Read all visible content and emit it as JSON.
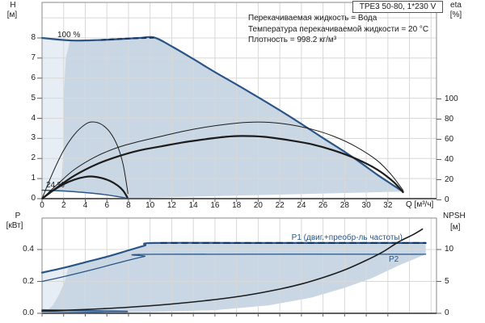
{
  "header": {
    "pump_model": "TPE3 50-80, 1*230 V"
  },
  "conditions": [
    "Перекачиваемая жидкость = Вода",
    "Температура перекачиваемой жидкости = 20 °C",
    "Плотность = 998.2 кг/м³"
  ],
  "axes": {
    "h": "H",
    "h_unit": "[м]",
    "eta": "eta",
    "eta_unit": "[%]",
    "q": "Q [м³/ч]",
    "p": "P",
    "p_unit": "[кВт]",
    "npsh": "NPSH",
    "npsh_unit": "[м]"
  },
  "labels": {
    "speed_100": "100 %",
    "speed_24": "24 %",
    "p1": "P1 (двиг.+преобр-ль частоты)",
    "p2": "P2"
  },
  "colors": {
    "curve_blue": "#2a5586",
    "dash_navy": "#16355c",
    "black": "#1c1c1c",
    "fill_main": "#c9d6e4",
    "fill_light": "#e6edf5",
    "grid": "#d8d8d8",
    "frame": "#8a8a8a",
    "axis": "#606060"
  },
  "chart_data": [
    {
      "type": "line",
      "title": "Pump head and efficiency vs flow",
      "xlabel": "Q [м³/ч]",
      "ylabel_left": "H [м]",
      "ylabel_right": "eta [%]",
      "x_range": [
        0,
        36.5
      ],
      "y_left_range": [
        0,
        9.8
      ],
      "y_right_range": [
        0,
        100
      ],
      "grid": true,
      "x_ticks": [
        "0",
        "2",
        "4",
        "6",
        "8",
        "10",
        "12",
        "14",
        "16",
        "18",
        "20",
        "22",
        "24",
        "26",
        "28",
        "30",
        "32"
      ],
      "h_ticks": [
        "0",
        "1",
        "2",
        "3",
        "4",
        "5",
        "6",
        "7",
        "8"
      ],
      "eta_ticks": [
        "0",
        "20",
        "40",
        "60",
        "80",
        "100"
      ],
      "series": [
        {
          "name": "head-curve-100pct",
          "axis": "H",
          "color": "blue",
          "width": 2.2,
          "dash": null,
          "points": [
            [
              0,
              8.0
            ],
            [
              1.5,
              7.92
            ],
            [
              3,
              7.87
            ],
            [
              5,
              7.89
            ],
            [
              7,
              7.94
            ],
            [
              9,
              8.0
            ],
            [
              10.4,
              8.02
            ],
            [
              12,
              7.58
            ],
            [
              14,
              6.95
            ],
            [
              16,
              6.3
            ],
            [
              18,
              5.68
            ],
            [
              20,
              5.05
            ],
            [
              22,
              4.4
            ],
            [
              24,
              3.72
            ],
            [
              26,
              3.02
            ],
            [
              28,
              2.33
            ],
            [
              29.5,
              1.78
            ],
            [
              31,
              1.2
            ],
            [
              32.3,
              0.73
            ],
            [
              33.4,
              0.35
            ]
          ]
        },
        {
          "name": "head-curve-100pct-dashes",
          "axis": "H",
          "color": "dash",
          "width": 2,
          "dash": "5 5",
          "points": [
            [
              5.5,
              7.9
            ],
            [
              8,
              7.97
            ],
            [
              10.3,
              8.01
            ]
          ]
        },
        {
          "name": "head-curve-24pct",
          "axis": "H",
          "color": "blue",
          "width": 1.4,
          "dash": null,
          "points": [
            [
              0,
              0.42
            ],
            [
              2,
              0.38
            ],
            [
              4,
              0.3
            ],
            [
              5.5,
              0.22
            ],
            [
              6.8,
              0.12
            ],
            [
              7.9,
              0.02
            ]
          ]
        },
        {
          "name": "efficiency-total-curve",
          "axis": "H",
          "color": "black",
          "width": 1,
          "dash": null,
          "points": [
            [
              0,
              0
            ],
            [
              1.5,
              0.75
            ],
            [
              3,
              1.45
            ],
            [
              5,
              2.1
            ],
            [
              7,
              2.55
            ],
            [
              9,
              2.85
            ],
            [
              11,
              3.1
            ],
            [
              13,
              3.35
            ],
            [
              15,
              3.55
            ],
            [
              17,
              3.7
            ],
            [
              19,
              3.8
            ],
            [
              21,
              3.8
            ],
            [
              23,
              3.68
            ],
            [
              25,
              3.45
            ],
            [
              27,
              3.1
            ],
            [
              29,
              2.6
            ],
            [
              31,
              1.9
            ],
            [
              32.3,
              1.2
            ],
            [
              33.4,
              0.42
            ]
          ]
        },
        {
          "name": "efficiency-pump-curve",
          "axis": "H",
          "color": "black",
          "width": 2.2,
          "dash": null,
          "points": [
            [
              0,
              0
            ],
            [
              1.5,
              0.6
            ],
            [
              3,
              1.15
            ],
            [
              5,
              1.7
            ],
            [
              7,
              2.1
            ],
            [
              9,
              2.4
            ],
            [
              11,
              2.6
            ],
            [
              13,
              2.8
            ],
            [
              15,
              2.95
            ],
            [
              17,
              3.08
            ],
            [
              18.5,
              3.12
            ],
            [
              20.5,
              3.08
            ],
            [
              23,
              2.9
            ],
            [
              25,
              2.7
            ],
            [
              27,
              2.4
            ],
            [
              29,
              2.0
            ],
            [
              31,
              1.45
            ],
            [
              32.5,
              0.85
            ],
            [
              33.4,
              0.32
            ]
          ]
        },
        {
          "name": "efficiency-arc-24pct-thin",
          "axis": "H",
          "color": "black",
          "width": 1,
          "dash": null,
          "points": [
            [
              0,
              0
            ],
            [
              1,
              1.3
            ],
            [
              2,
              2.4
            ],
            [
              3,
              3.2
            ],
            [
              4,
              3.7
            ],
            [
              4.7,
              3.82
            ],
            [
              5.5,
              3.7
            ],
            [
              6.3,
              3.3
            ],
            [
              7,
              2.6
            ],
            [
              7.5,
              1.7
            ],
            [
              7.85,
              0.6
            ],
            [
              7.95,
              0.25
            ]
          ]
        },
        {
          "name": "efficiency-arc-24pct-thick",
          "axis": "H",
          "color": "black",
          "width": 2.2,
          "dash": null,
          "points": [
            [
              0,
              0
            ],
            [
              1,
              0.4
            ],
            [
              2,
              0.72
            ],
            [
              3,
              0.95
            ],
            [
              4,
              1.08
            ],
            [
              4.7,
              1.1
            ],
            [
              5.5,
              1.03
            ],
            [
              6.3,
              0.88
            ],
            [
              7,
              0.65
            ],
            [
              7.5,
              0.4
            ],
            [
              7.9,
              0.06
            ]
          ]
        }
      ],
      "fills": [
        {
          "name": "operating-envelope",
          "axis": "H",
          "shade": "main",
          "points": [
            [
              0,
              8.0
            ],
            [
              3,
              7.87
            ],
            [
              5,
              7.89
            ],
            [
              7,
              7.94
            ],
            [
              9,
              8.0
            ],
            [
              10.4,
              8.02
            ],
            [
              12,
              7.58
            ],
            [
              14,
              6.95
            ],
            [
              16,
              6.3
            ],
            [
              18,
              5.68
            ],
            [
              20,
              5.05
            ],
            [
              22,
              4.4
            ],
            [
              24,
              3.72
            ],
            [
              26,
              3.02
            ],
            [
              28,
              2.33
            ],
            [
              29.5,
              1.78
            ],
            [
              31,
              1.2
            ],
            [
              32.3,
              0.73
            ],
            [
              33.4,
              0.35
            ],
            [
              7.9,
              0.02
            ],
            [
              6.8,
              0.12
            ],
            [
              5.5,
              0.22
            ],
            [
              4,
              0.3
            ],
            [
              2,
              0.38
            ],
            [
              0,
              0.42
            ]
          ]
        },
        {
          "name": "low-flow-control-region",
          "axis": "H",
          "shade": "light",
          "points": [
            [
              0,
              8.0
            ],
            [
              2.6,
              7.9
            ],
            [
              2.2,
              7.0
            ],
            [
              2.0,
              5.0
            ],
            [
              2.0,
              2.5
            ],
            [
              1.8,
              1.0
            ],
            [
              1.1,
              0.42
            ],
            [
              0,
              0.42
            ]
          ]
        }
      ]
    },
    {
      "type": "line",
      "title": "Power and NPSH vs flow",
      "xlabel": "Q [м³/ч]",
      "ylabel_left": "P [кВт]",
      "ylabel_right": "NPSH [м]",
      "x_range": [
        0,
        36.5
      ],
      "y_left_range": [
        0,
        0.6
      ],
      "y_right_range": [
        0,
        15
      ],
      "grid": true,
      "p_ticks": [
        "0.0",
        "0.2",
        "0.4"
      ],
      "npsh_ticks": [
        "0",
        "5",
        "10"
      ],
      "series": [
        {
          "name": "p1-curve",
          "axis": "P",
          "color": "blue",
          "width": 2.2,
          "dash": null,
          "points": [
            [
              0,
              0.255
            ],
            [
              2,
              0.285
            ],
            [
              4,
              0.32
            ],
            [
              6,
              0.355
            ],
            [
              8,
              0.395
            ],
            [
              9.5,
              0.425
            ],
            [
              10.4,
              0.441
            ],
            [
              20,
              0.441
            ],
            [
              35.5,
              0.441
            ]
          ]
        },
        {
          "name": "p1-curve-dashes",
          "axis": "P",
          "color": "dash",
          "width": 2,
          "dash": "7 6",
          "points": [
            [
              11,
              0.441
            ],
            [
              35.5,
              0.441
            ]
          ]
        },
        {
          "name": "p2-curve",
          "axis": "P",
          "color": "blue",
          "width": 1.3,
          "dash": null,
          "points": [
            [
              0,
              0.2
            ],
            [
              2,
              0.23
            ],
            [
              4,
              0.263
            ],
            [
              6,
              0.297
            ],
            [
              8,
              0.333
            ],
            [
              9.5,
              0.357
            ],
            [
              10.4,
              0.37
            ],
            [
              35.5,
              0.37
            ]
          ]
        },
        {
          "name": "p1-curve-24pct",
          "axis": "P",
          "color": "blue",
          "width": 1.6,
          "dash": null,
          "points": [
            [
              0,
              0.022
            ],
            [
              4,
              0.017
            ],
            [
              7.9,
              0.012
            ]
          ]
        },
        {
          "name": "p2-curve-24pct",
          "axis": "P",
          "color": "blue",
          "width": 1,
          "dash": null,
          "points": [
            [
              0,
              0.011
            ],
            [
              4,
              0.008
            ],
            [
              7.9,
              0.004
            ]
          ]
        },
        {
          "name": "npsh-curve",
          "axis": "NPSH",
          "color": "black",
          "width": 1.6,
          "dash": null,
          "points": [
            [
              0,
              0.35
            ],
            [
              4,
              0.6
            ],
            [
              8,
              0.95
            ],
            [
              12,
              1.45
            ],
            [
              16,
              2.15
            ],
            [
              19,
              2.85
            ],
            [
              22,
              3.8
            ],
            [
              24,
              4.6
            ],
            [
              26,
              5.6
            ],
            [
              28,
              6.8
            ],
            [
              30,
              8.3
            ],
            [
              31.5,
              9.6
            ],
            [
              33,
              11.2
            ],
            [
              34.3,
              12.3
            ],
            [
              35.2,
              13.2
            ]
          ]
        }
      ],
      "fills": [
        {
          "name": "power-envelope",
          "axis": "P",
          "shade": "main",
          "points": [
            [
              0,
              0.255
            ],
            [
              2,
              0.285
            ],
            [
              4,
              0.32
            ],
            [
              6,
              0.355
            ],
            [
              8,
              0.395
            ],
            [
              9.5,
              0.425
            ],
            [
              10.4,
              0.441
            ],
            [
              35.5,
              0.441
            ],
            [
              35.5,
              0.37
            ],
            [
              33,
              0.3
            ],
            [
              30.5,
              0.22
            ],
            [
              28,
              0.16
            ],
            [
              25,
              0.1
            ],
            [
              21,
              0.05
            ],
            [
              16,
              0.02
            ],
            [
              10,
              0.008
            ],
            [
              4,
              0.005
            ],
            [
              0,
              0.004
            ]
          ]
        },
        {
          "name": "low-flow-power-region",
          "axis": "P",
          "shade": "light",
          "points": [
            [
              0,
              0.255
            ],
            [
              0.8,
              0.265
            ],
            [
              1.6,
              0.277
            ],
            [
              2.45,
              0.29
            ],
            [
              2.1,
              0.2
            ],
            [
              1.6,
              0.12
            ],
            [
              1.0,
              0.05
            ],
            [
              0.4,
              0.012
            ],
            [
              0,
              0.01
            ]
          ]
        }
      ]
    }
  ]
}
